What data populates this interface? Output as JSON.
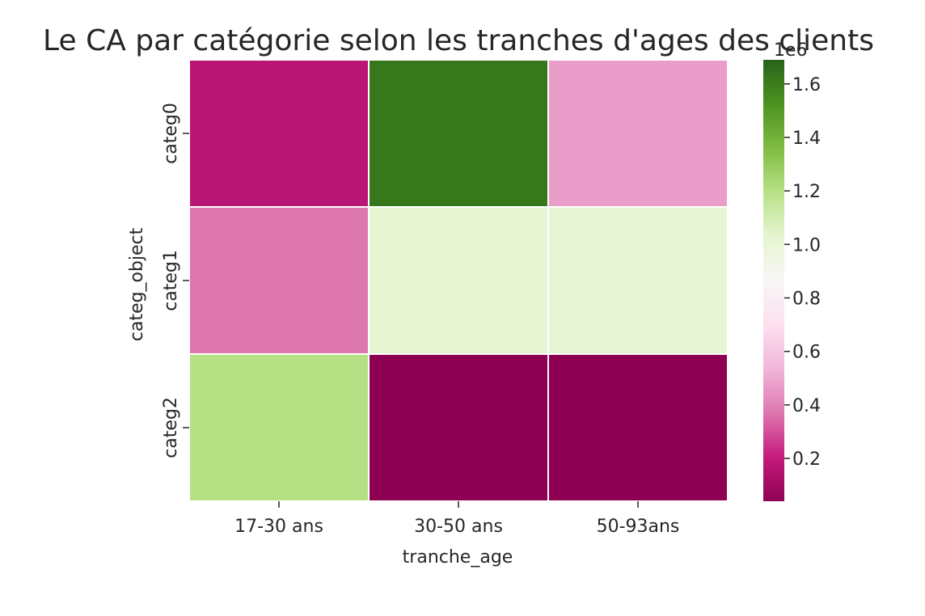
{
  "chart_data": {
    "type": "heatmap",
    "title": "Le CA par catégorie selon les tranches d'ages des clients",
    "xlabel": "tranche_age",
    "ylabel": "categ_object",
    "x_categories": [
      "17-30 ans",
      "30-50 ans",
      "50-93ans"
    ],
    "y_categories": [
      "categ0",
      "categ1",
      "categ2"
    ],
    "values": [
      [
        0.17,
        1.62,
        0.47
      ],
      [
        0.37,
        1.02,
        1.01
      ],
      [
        1.2,
        0.04,
        0.04
      ]
    ],
    "value_unit_multiplier": "1e6",
    "colormap": "PiYG",
    "colorbar": {
      "range": [
        0.04,
        1.69
      ],
      "ticks": [
        0.2,
        0.4,
        0.6,
        0.8,
        1.0,
        1.2,
        1.4,
        1.6
      ],
      "tick_labels": [
        "0.2",
        "0.4",
        "0.6",
        "0.8",
        "1.0",
        "1.2",
        "1.4",
        "1.6"
      ],
      "multiplier_label": "1e6",
      "placement": "right"
    },
    "grid": false,
    "cell_separator_color": "#ffffff"
  }
}
